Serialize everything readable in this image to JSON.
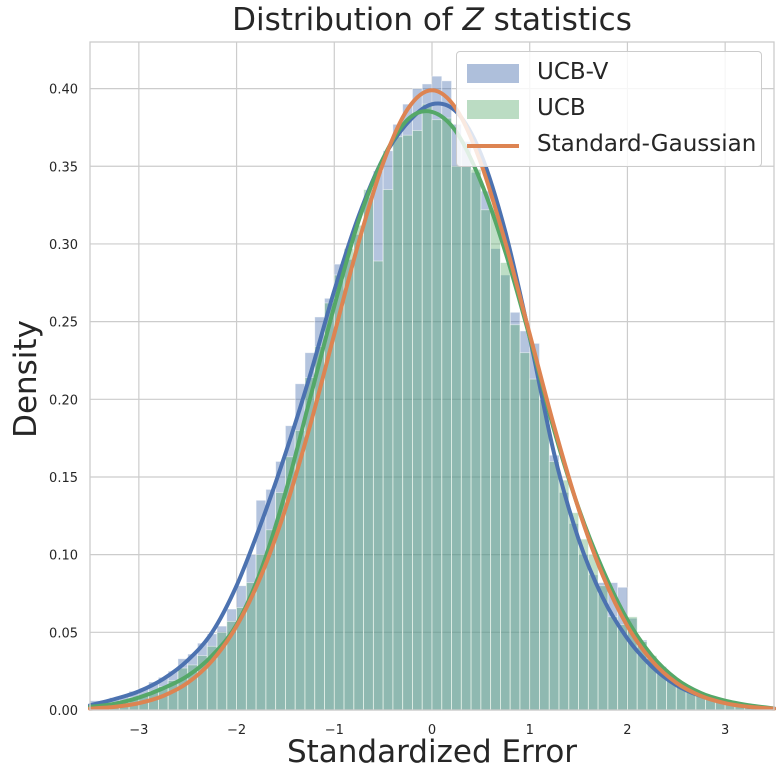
{
  "chart_data": {
    "type": "bar",
    "title_prefix": "Distribution of ",
    "title_var": "Z",
    "title_suffix": " statistics",
    "xlabel": "Standardized Error",
    "ylabel": "Density",
    "xlim": [
      -3.5,
      3.5
    ],
    "ylim": [
      0,
      0.43
    ],
    "xticks": [
      -3,
      -2,
      -1,
      0,
      1,
      2,
      3
    ],
    "xtick_labels": [
      "−3",
      "−2",
      "−1",
      "0",
      "1",
      "2",
      "3"
    ],
    "yticks": [
      0.0,
      0.05,
      0.1,
      0.15,
      0.2,
      0.25,
      0.3,
      0.35,
      0.4
    ],
    "ytick_labels": [
      "0.00",
      "0.05",
      "0.10",
      "0.15",
      "0.20",
      "0.25",
      "0.30",
      "0.35",
      "0.40"
    ],
    "grid": true,
    "legend_position": "top-right",
    "bin_edges": [
      -3.5,
      -3.4,
      -3.3,
      -3.2,
      -3.1,
      -3.0,
      -2.9,
      -2.8,
      -2.7,
      -2.6,
      -2.5,
      -2.4,
      -2.3,
      -2.2,
      -2.1,
      -2.0,
      -1.9,
      -1.8,
      -1.7,
      -1.6,
      -1.5,
      -1.4,
      -1.3,
      -1.2,
      -1.1,
      -1.0,
      -0.9,
      -0.8,
      -0.7,
      -0.6,
      -0.5,
      -0.4,
      -0.3,
      -0.2,
      -0.1,
      0.0,
      0.1,
      0.2,
      0.3,
      0.4,
      0.5,
      0.6,
      0.7,
      0.8,
      0.9,
      1.0,
      1.1,
      1.2,
      1.3,
      1.4,
      1.5,
      1.6,
      1.7,
      1.8,
      1.9,
      2.0,
      2.1,
      2.2,
      2.3,
      2.4,
      2.5,
      2.6,
      2.7,
      2.8,
      2.9,
      3.0,
      3.1,
      3.2,
      3.3,
      3.4,
      3.5
    ],
    "histograms": [
      {
        "name": "UCB-V",
        "color": "#4c72b0",
        "alpha": 0.42,
        "values": [
          0.006,
          0.006,
          0.008,
          0.009,
          0.012,
          0.014,
          0.018,
          0.021,
          0.025,
          0.033,
          0.036,
          0.043,
          0.049,
          0.054,
          0.065,
          0.08,
          0.1,
          0.135,
          0.142,
          0.16,
          0.183,
          0.21,
          0.23,
          0.253,
          0.265,
          0.287,
          0.29,
          0.306,
          0.33,
          0.347,
          0.36,
          0.377,
          0.39,
          0.4,
          0.403,
          0.408,
          0.405,
          0.377,
          0.366,
          0.346,
          0.334,
          0.297,
          0.28,
          0.256,
          0.244,
          0.236,
          0.2,
          0.164,
          0.14,
          0.12,
          0.1,
          0.087,
          0.082,
          0.082,
          0.079,
          0.059,
          0.045,
          0.034,
          0.028,
          0.022,
          0.017,
          0.012,
          0.009,
          0.007,
          0.005,
          0.004,
          0.003,
          0.002,
          0.001,
          0.0
        ]
      },
      {
        "name": "UCB",
        "color": "#55a868",
        "alpha": 0.38,
        "values": [
          0.003,
          0.004,
          0.005,
          0.006,
          0.008,
          0.009,
          0.012,
          0.015,
          0.019,
          0.027,
          0.029,
          0.035,
          0.041,
          0.05,
          0.057,
          0.066,
          0.082,
          0.1,
          0.116,
          0.14,
          0.163,
          0.18,
          0.214,
          0.234,
          0.262,
          0.28,
          0.297,
          0.312,
          0.335,
          0.289,
          0.335,
          0.369,
          0.37,
          0.373,
          0.39,
          0.38,
          0.381,
          0.35,
          0.35,
          0.348,
          0.322,
          0.322,
          0.288,
          0.248,
          0.23,
          0.213,
          0.2,
          0.16,
          0.148,
          0.127,
          0.11,
          0.1,
          0.08,
          0.06,
          0.055,
          0.06,
          0.044,
          0.035,
          0.027,
          0.02,
          0.017,
          0.013,
          0.01,
          0.008,
          0.006,
          0.004,
          0.003,
          0.002,
          0.001,
          0.0
        ]
      }
    ],
    "series": [
      {
        "name": "UCB-V",
        "color": "#4c72b0",
        "x": [
          -3.5,
          -3.25,
          -3.0,
          -2.75,
          -2.5,
          -2.25,
          -2.0,
          -1.75,
          -1.5,
          -1.25,
          -1.0,
          -0.75,
          -0.5,
          -0.25,
          0.0,
          0.25,
          0.5,
          0.75,
          1.0,
          1.25,
          1.5,
          1.75,
          2.0,
          2.25,
          2.5,
          2.75,
          3.0,
          3.25,
          3.5
        ],
        "y": [
          0.003,
          0.007,
          0.012,
          0.02,
          0.032,
          0.05,
          0.08,
          0.12,
          0.165,
          0.215,
          0.27,
          0.318,
          0.355,
          0.378,
          0.39,
          0.385,
          0.358,
          0.308,
          0.24,
          0.165,
          0.11,
          0.072,
          0.046,
          0.028,
          0.016,
          0.009,
          0.005,
          0.002,
          0.001
        ]
      },
      {
        "name": "UCB",
        "color": "#55a868",
        "x": [
          -3.5,
          -3.25,
          -3.0,
          -2.75,
          -2.5,
          -2.25,
          -2.0,
          -1.75,
          -1.5,
          -1.25,
          -1.0,
          -0.75,
          -0.5,
          -0.25,
          0.0,
          0.25,
          0.5,
          0.75,
          1.0,
          1.25,
          1.5,
          1.75,
          2.0,
          2.25,
          2.5,
          2.75,
          3.0,
          3.25,
          3.5
        ],
        "y": [
          0.002,
          0.004,
          0.008,
          0.014,
          0.022,
          0.035,
          0.055,
          0.09,
          0.14,
          0.2,
          0.26,
          0.315,
          0.355,
          0.38,
          0.385,
          0.372,
          0.34,
          0.295,
          0.24,
          0.18,
          0.13,
          0.09,
          0.058,
          0.035,
          0.02,
          0.011,
          0.006,
          0.003,
          0.001
        ]
      },
      {
        "name": "Standard-Gaussian",
        "color": "#dd8452",
        "x": [
          -3.5,
          -3.25,
          -3.0,
          -2.75,
          -2.5,
          -2.25,
          -2.0,
          -1.75,
          -1.5,
          -1.25,
          -1.0,
          -0.75,
          -0.5,
          -0.25,
          0.0,
          0.25,
          0.5,
          0.75,
          1.0,
          1.25,
          1.5,
          1.75,
          2.0,
          2.25,
          2.5,
          2.75,
          3.0,
          3.25,
          3.5
        ],
        "y": [
          0.0009,
          0.002,
          0.0044,
          0.0091,
          0.0175,
          0.0317,
          0.054,
          0.0863,
          0.1295,
          0.1826,
          0.242,
          0.3011,
          0.3521,
          0.3867,
          0.3989,
          0.3867,
          0.3521,
          0.3011,
          0.242,
          0.1826,
          0.1295,
          0.0863,
          0.054,
          0.0317,
          0.0175,
          0.0091,
          0.0044,
          0.002,
          0.0009
        ]
      }
    ],
    "legend": [
      {
        "label": "UCB-V",
        "kind": "patch",
        "color": "#4c72b0"
      },
      {
        "label": "UCB",
        "kind": "patch",
        "color": "#55a868"
      },
      {
        "label": "Standard-Gaussian",
        "kind": "line",
        "color": "#dd8452"
      }
    ]
  }
}
